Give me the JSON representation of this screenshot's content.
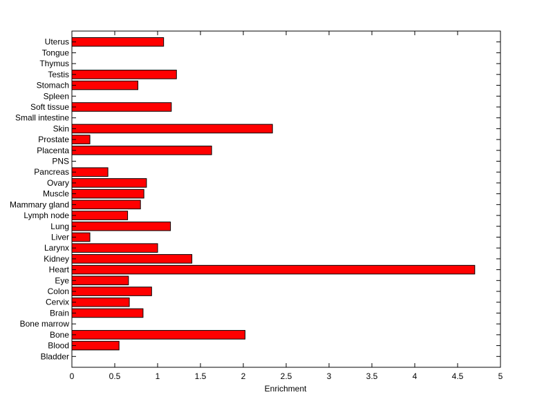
{
  "chart_data": {
    "type": "bar",
    "orientation": "horizontal",
    "title": "",
    "xlabel": "Enrichment",
    "ylabel": "",
    "xlim": [
      0,
      5
    ],
    "xticks": [
      0,
      0.5,
      1,
      1.5,
      2,
      2.5,
      3,
      3.5,
      4,
      4.5,
      5
    ],
    "xtick_labels": [
      "0",
      "0.5",
      "1",
      "1.5",
      "2",
      "2.5",
      "3",
      "3.5",
      "4",
      "4.5",
      "5"
    ],
    "grid": false,
    "legend": "none",
    "bar_color": "#ff0000",
    "bar_edge_color": "#000000",
    "categories": [
      "Bladder",
      "Blood",
      "Bone",
      "Bone marrow",
      "Brain",
      "Cervix",
      "Colon",
      "Eye",
      "Heart",
      "Kidney",
      "Larynx",
      "Liver",
      "Lung",
      "Lymph node",
      "Mammary gland",
      "Muscle",
      "Ovary",
      "Pancreas",
      "PNS",
      "Placenta",
      "Prostate",
      "Skin",
      "Small intestine",
      "Soft tissue",
      "Spleen",
      "Stomach",
      "Testis",
      "Thymus",
      "Tongue",
      "Uterus"
    ],
    "values": [
      0,
      0.55,
      2.02,
      0,
      0.83,
      0.67,
      0.93,
      0.66,
      4.7,
      1.4,
      1.0,
      0.21,
      1.15,
      0.65,
      0.8,
      0.84,
      0.87,
      0.42,
      0,
      1.63,
      0.21,
      2.34,
      0,
      1.16,
      0,
      0.77,
      1.22,
      0,
      0,
      1.07
    ]
  }
}
